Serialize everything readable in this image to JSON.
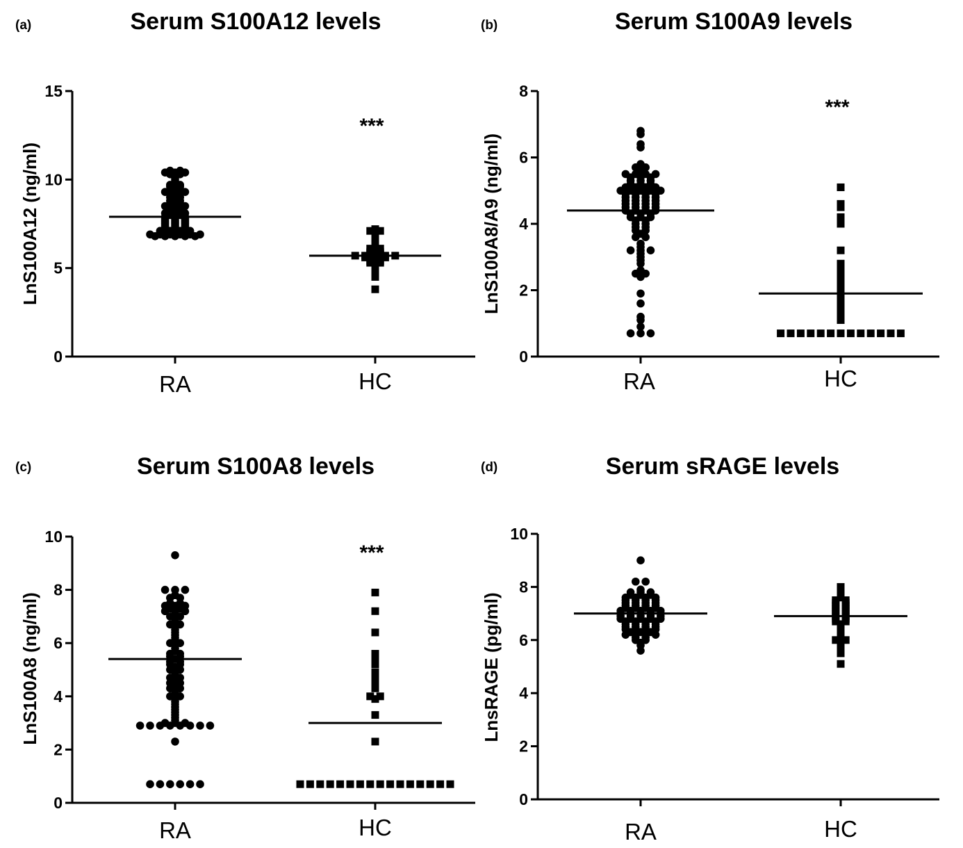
{
  "chart_data": [
    {
      "type": "scatter",
      "panel_label": "(a)",
      "title": "Serum S100A12 levels",
      "ylabel": "LnS100A12 (ng/ml)",
      "ylim": [
        0,
        15
      ],
      "yticks": [
        "0",
        "5",
        "10",
        "15"
      ],
      "categories": [
        "RA",
        "HC"
      ],
      "significance": "***",
      "significance_y": 13.2,
      "series": [
        {
          "category": "RA",
          "marker": "circle",
          "mean": 7.9,
          "values": [
            10.4,
            10.5,
            10.5,
            10.4,
            10.4,
            10.3,
            10.3,
            10.0,
            10.1,
            9.9,
            9.8,
            9.7,
            9.7,
            9.6,
            9.6,
            9.5,
            9.4,
            9.4,
            9.3,
            9.3,
            9.3,
            9.2,
            9.1,
            9.0,
            9.0,
            8.9,
            8.8,
            8.8,
            8.7,
            8.6,
            8.5,
            8.5,
            8.5,
            8.4,
            8.4,
            8.3,
            8.3,
            8.2,
            8.2,
            8.1,
            8.1,
            8.1,
            8.0,
            8.0,
            7.9,
            7.9,
            7.9,
            7.8,
            7.8,
            7.8,
            7.7,
            7.7,
            7.7,
            7.6,
            7.6,
            7.6,
            7.5,
            7.5,
            7.5,
            7.4,
            7.4,
            7.4,
            7.3,
            7.3,
            7.3,
            7.2,
            7.2,
            7.2,
            7.1,
            7.1,
            7.1,
            7.1,
            7.0,
            7.0,
            7.0,
            7.0,
            6.9,
            6.9,
            6.9,
            6.9,
            6.9,
            6.9,
            6.8,
            6.8,
            6.8,
            6.8,
            6.8
          ]
        },
        {
          "category": "HC",
          "marker": "square",
          "mean": 5.7,
          "values": [
            7.2,
            7.1,
            7.1,
            6.8,
            6.6,
            6.5,
            6.2,
            6.1,
            6.1,
            6.0,
            5.9,
            5.9,
            5.8,
            5.8,
            5.7,
            5.7,
            5.7,
            5.7,
            5.7,
            5.6,
            5.6,
            5.6,
            5.5,
            5.4,
            5.4,
            5.3,
            5.3,
            5.2,
            5.1,
            5.0,
            4.9,
            4.8,
            4.5,
            3.8
          ]
        }
      ]
    },
    {
      "type": "scatter",
      "panel_label": "(b)",
      "title": "Serum S100A9 levels",
      "ylabel": "LnS100A8/A9 (ng/ml)",
      "ylim": [
        0,
        8
      ],
      "yticks": [
        "0",
        "2",
        "4",
        "6",
        "8"
      ],
      "categories": [
        "RA",
        "HC"
      ],
      "significance": "***",
      "significance_y": 7.6,
      "series": [
        {
          "category": "RA",
          "marker": "circle",
          "mean": 4.4,
          "values": [
            6.8,
            6.7,
            6.4,
            6.3,
            5.8,
            5.7,
            5.7,
            5.6,
            5.5,
            5.5,
            5.5,
            5.5,
            5.4,
            5.4,
            5.4,
            5.3,
            5.3,
            5.3,
            5.2,
            5.2,
            5.2,
            5.1,
            5.1,
            5.1,
            5.1,
            5.0,
            5.0,
            5.0,
            5.0,
            5.0,
            4.9,
            4.9,
            4.9,
            4.9,
            4.8,
            4.8,
            4.8,
            4.8,
            4.7,
            4.7,
            4.7,
            4.7,
            4.6,
            4.6,
            4.6,
            4.6,
            4.5,
            4.5,
            4.5,
            4.5,
            4.4,
            4.4,
            4.4,
            4.4,
            4.3,
            4.3,
            4.3,
            4.2,
            4.2,
            4.2,
            4.1,
            4.1,
            4.0,
            4.0,
            3.9,
            3.9,
            3.8,
            3.8,
            3.7,
            3.6,
            3.6,
            3.4,
            3.3,
            3.2,
            3.2,
            3.2,
            3.1,
            3.0,
            2.9,
            2.8,
            2.6,
            2.5,
            2.5,
            2.4,
            1.9,
            1.6,
            1.2,
            1.1,
            0.9,
            0.7,
            0.7,
            0.7
          ]
        },
        {
          "category": "HC",
          "marker": "square",
          "mean": 1.9,
          "values": [
            5.1,
            4.6,
            4.5,
            4.2,
            4.0,
            3.2,
            2.8,
            2.6,
            2.5,
            2.3,
            2.2,
            2.1,
            2.0,
            1.8,
            1.7,
            1.6,
            1.5,
            1.3,
            1.1,
            0.7,
            0.7,
            0.7,
            0.7,
            0.7,
            0.7,
            0.7,
            0.7,
            0.7,
            0.7,
            0.7,
            0.7,
            0.7
          ]
        }
      ]
    },
    {
      "type": "scatter",
      "panel_label": "(c)",
      "title": "Serum S100A8 levels",
      "ylabel": "LnS100A8 (ng/ml)",
      "ylim": [
        0,
        10
      ],
      "yticks": [
        "0",
        "2",
        "4",
        "6",
        "8",
        "10"
      ],
      "categories": [
        "RA",
        "HC"
      ],
      "significance": "***",
      "significance_y": 9.5,
      "series": [
        {
          "category": "RA",
          "marker": "circle",
          "mean": 5.4,
          "values": [
            9.3,
            8.0,
            8.0,
            8.0,
            7.8,
            7.7,
            7.7,
            7.5,
            7.5,
            7.4,
            7.4,
            7.4,
            7.3,
            7.3,
            7.2,
            7.2,
            7.2,
            7.1,
            7.0,
            7.0,
            6.9,
            6.8,
            6.7,
            6.7,
            6.6,
            6.5,
            6.4,
            6.3,
            6.2,
            6.1,
            6.0,
            6.0,
            5.9,
            5.8,
            5.7,
            5.6,
            5.6,
            5.5,
            5.5,
            5.4,
            5.3,
            5.3,
            5.2,
            5.2,
            5.1,
            5.0,
            5.0,
            4.9,
            4.8,
            4.7,
            4.7,
            4.6,
            4.5,
            4.5,
            4.4,
            4.3,
            4.3,
            4.2,
            4.1,
            4.0,
            4.0,
            3.9,
            3.8,
            3.7,
            3.6,
            3.5,
            3.4,
            3.3,
            3.2,
            3.1,
            3.0,
            3.0,
            3.0,
            2.9,
            2.9,
            2.9,
            2.9,
            2.9,
            2.9,
            2.9,
            2.9,
            2.3,
            0.7,
            0.7,
            0.7,
            0.7,
            0.7,
            0.7
          ]
        },
        {
          "category": "HC",
          "marker": "square",
          "mean": 3.0,
          "values": [
            7.9,
            7.2,
            6.4,
            5.6,
            5.4,
            5.2,
            4.9,
            4.8,
            4.7,
            4.6,
            4.5,
            4.4,
            4.3,
            4.0,
            4.0,
            3.9,
            3.3,
            2.3,
            0.7,
            0.7,
            0.7,
            0.7,
            0.7,
            0.7,
            0.7,
            0.7,
            0.7,
            0.7,
            0.7,
            0.7,
            0.7,
            0.7,
            0.7,
            0.7
          ]
        }
      ]
    },
    {
      "type": "scatter",
      "panel_label": "(d)",
      "title": "Serum sRAGE levels",
      "ylabel": "LnsRAGE (pg/ml)",
      "ylim": [
        0,
        10
      ],
      "yticks": [
        "0",
        "2",
        "4",
        "6",
        "8",
        "10"
      ],
      "categories": [
        "RA",
        "HC"
      ],
      "significance": "",
      "series": [
        {
          "category": "RA",
          "marker": "circle",
          "mean": 7.0,
          "values": [
            9.0,
            8.2,
            8.2,
            7.9,
            7.8,
            7.8,
            7.8,
            7.7,
            7.7,
            7.7,
            7.6,
            7.6,
            7.6,
            7.6,
            7.5,
            7.5,
            7.5,
            7.5,
            7.4,
            7.4,
            7.4,
            7.4,
            7.3,
            7.3,
            7.3,
            7.3,
            7.2,
            7.2,
            7.2,
            7.2,
            7.1,
            7.1,
            7.1,
            7.1,
            7.1,
            7.0,
            7.0,
            7.0,
            7.0,
            7.0,
            6.9,
            6.9,
            6.9,
            6.9,
            6.9,
            6.8,
            6.8,
            6.8,
            6.8,
            6.8,
            6.7,
            6.7,
            6.7,
            6.7,
            6.6,
            6.6,
            6.6,
            6.6,
            6.5,
            6.5,
            6.5,
            6.5,
            6.4,
            6.4,
            6.4,
            6.4,
            6.3,
            6.3,
            6.3,
            6.2,
            6.2,
            6.2,
            6.2,
            6.1,
            6.1,
            6.0,
            6.0,
            5.9,
            5.8,
            5.6
          ]
        },
        {
          "category": "HC",
          "marker": "square",
          "mean": 6.9,
          "values": [
            8.0,
            7.9,
            7.8,
            7.7,
            7.6,
            7.5,
            7.5,
            7.4,
            7.4,
            7.3,
            7.3,
            7.2,
            7.2,
            7.1,
            7.1,
            7.0,
            7.0,
            6.9,
            6.9,
            6.8,
            6.8,
            6.7,
            6.7,
            6.6,
            6.5,
            6.4,
            6.3,
            6.2,
            6.1,
            6.0,
            6.0,
            5.9,
            5.8,
            5.7,
            5.5,
            5.1
          ]
        }
      ]
    }
  ],
  "colors": {
    "ink": "#000000",
    "background": "#ffffff"
  }
}
